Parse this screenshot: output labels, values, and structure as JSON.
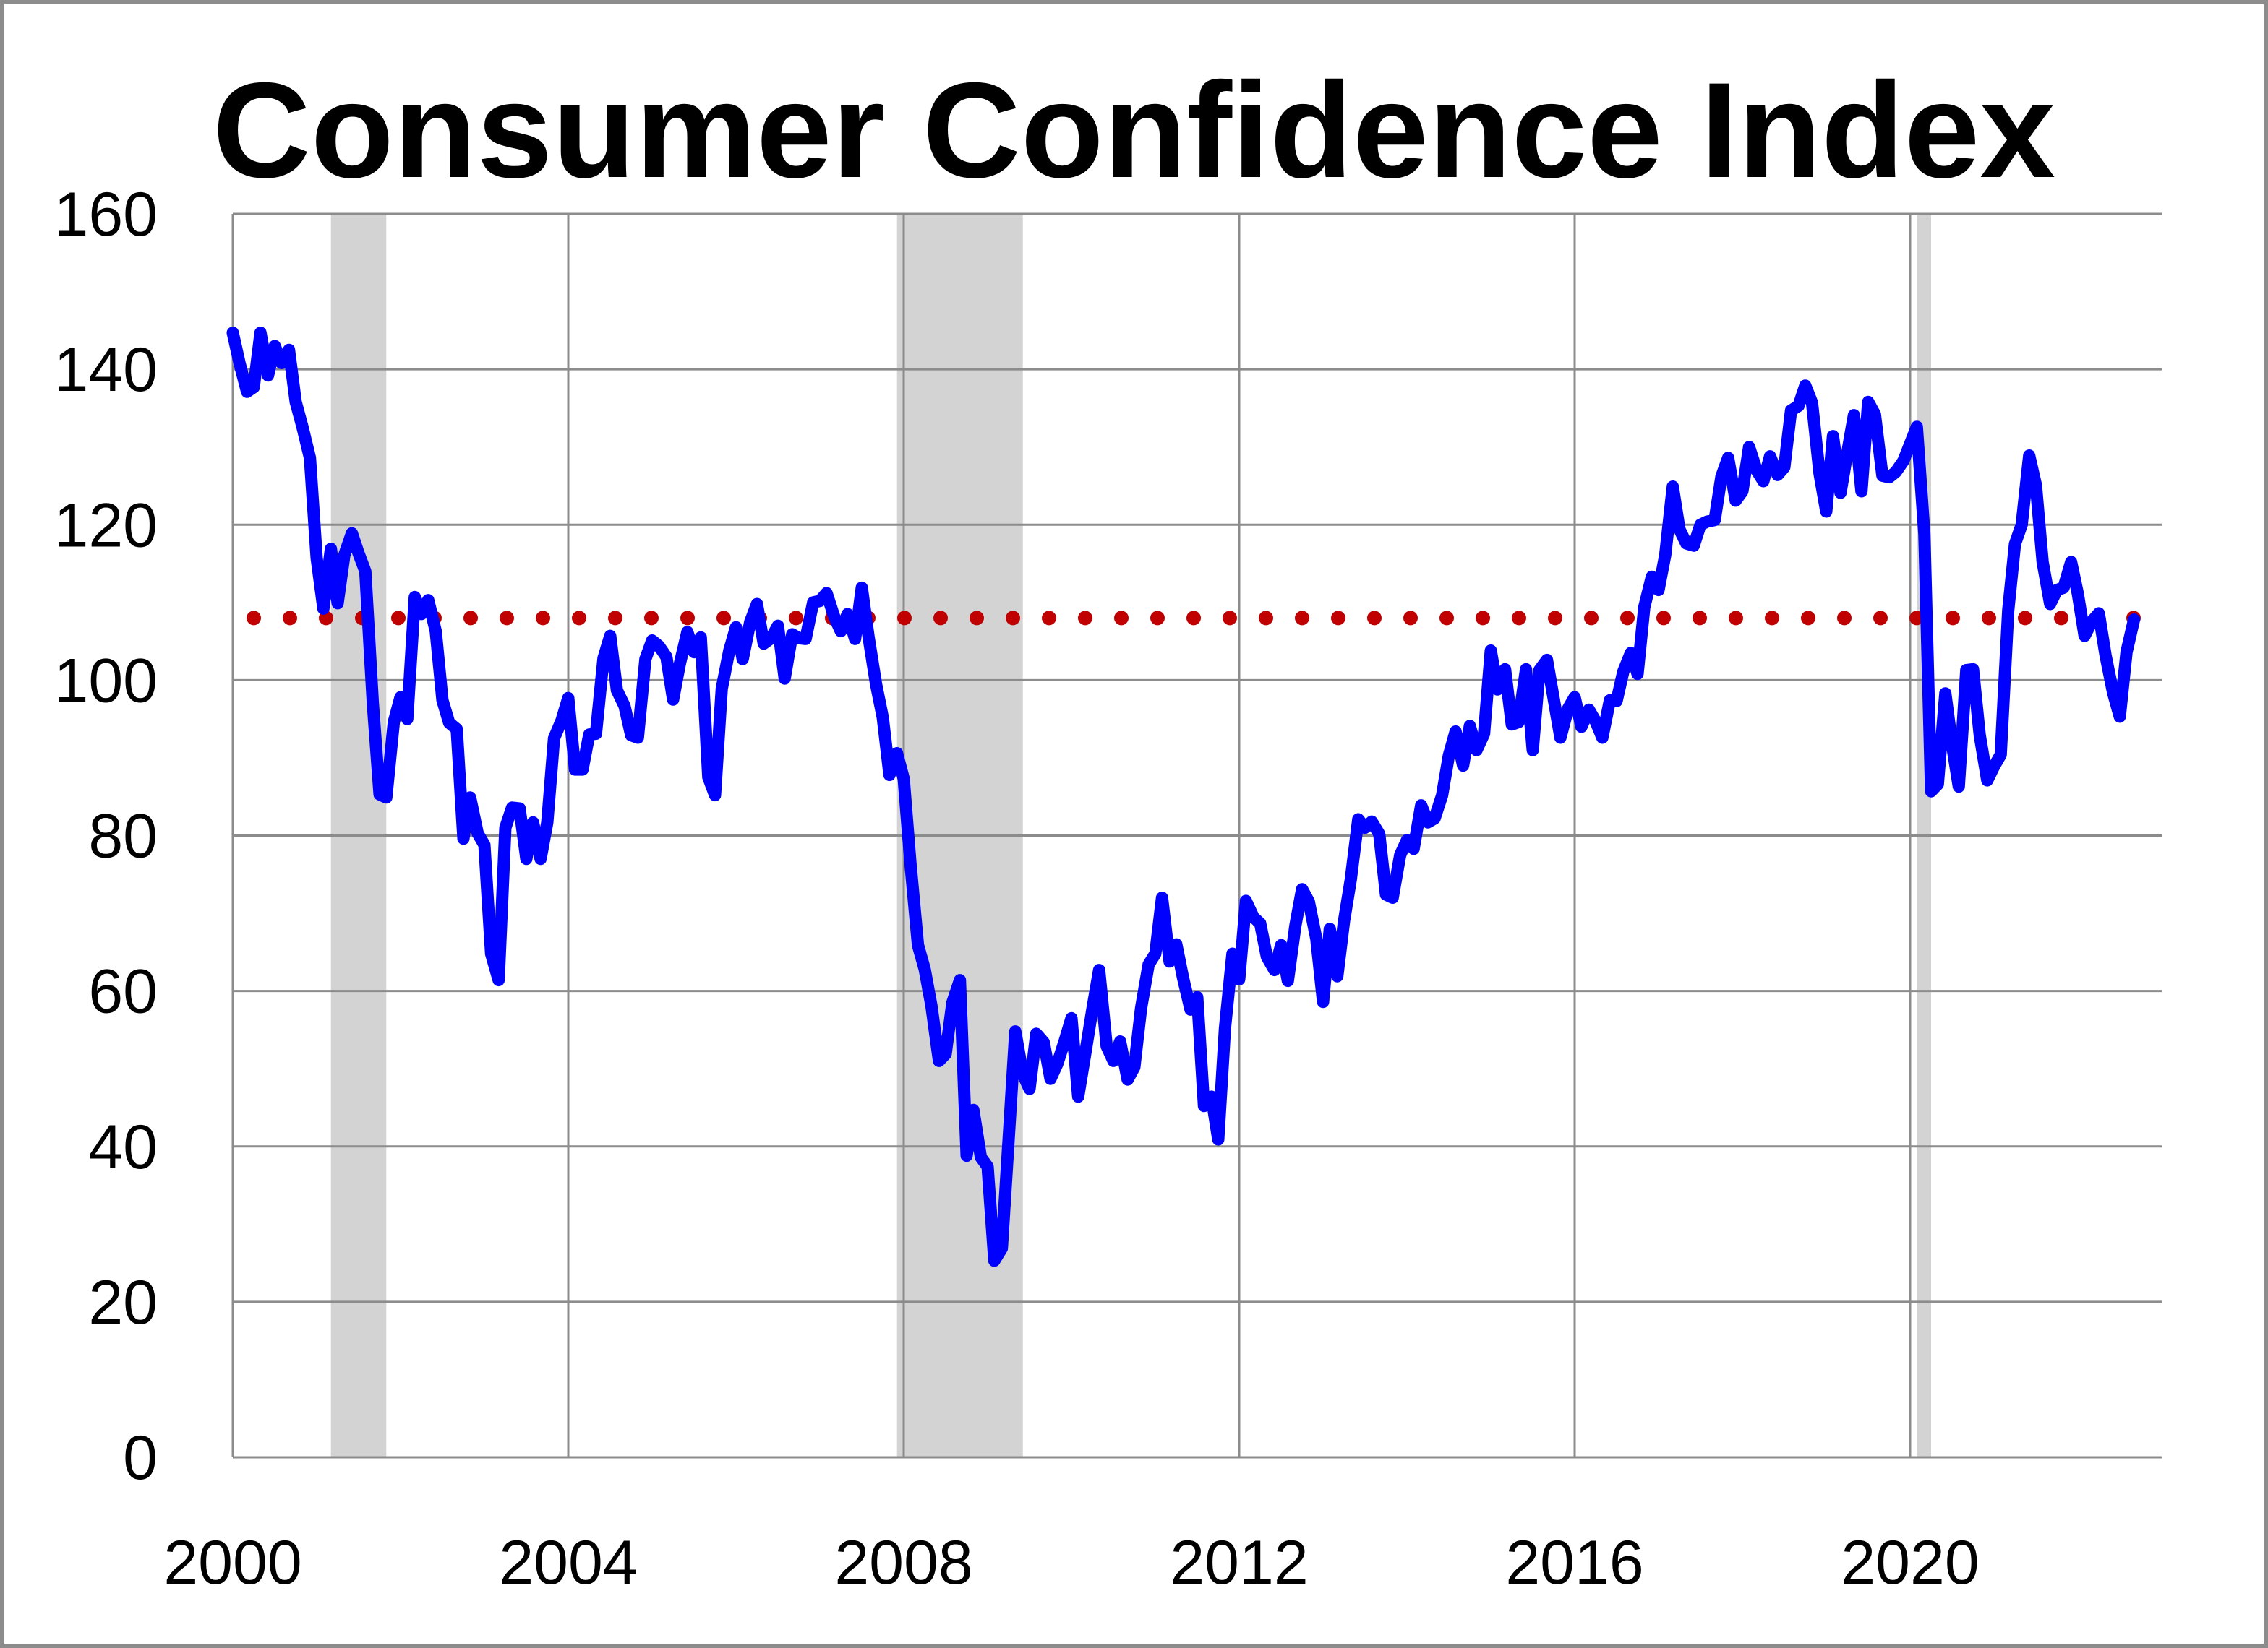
{
  "chart_data": {
    "type": "line",
    "title": "Consumer Confidence Index",
    "xlabel": "",
    "ylabel": "",
    "xlim": [
      2000.0,
      2023.0
    ],
    "ylim": [
      0,
      160
    ],
    "x_ticks": [
      2000,
      2004,
      2008,
      2012,
      2016,
      2020
    ],
    "x_tick_labels": [
      "2000",
      "2004",
      "2008",
      "2012",
      "2016",
      "2020"
    ],
    "y_ticks": [
      0,
      20,
      40,
      60,
      80,
      100,
      120,
      140,
      160
    ],
    "y_tick_labels": [
      "0",
      "20",
      "40",
      "60",
      "80",
      "100",
      "120",
      "140",
      "160"
    ],
    "grid": true,
    "legend": "none",
    "recessions": [
      {
        "start": 2001.17,
        "end": 2001.83
      },
      {
        "start": 2007.92,
        "end": 2009.42
      },
      {
        "start": 2020.08,
        "end": 2020.25
      }
    ],
    "reference_line": {
      "value": 108,
      "style": "dotted",
      "color": "#c00000"
    },
    "series": [
      {
        "color": "#0000ff",
        "points": [
          [
            2000.0,
            144.7
          ],
          [
            2000.08,
            140.8
          ],
          [
            2000.17,
            137.1
          ],
          [
            2000.25,
            137.7
          ],
          [
            2000.33,
            144.7
          ],
          [
            2000.42,
            139.2
          ],
          [
            2000.5,
            143.0
          ],
          [
            2000.58,
            140.8
          ],
          [
            2000.67,
            142.5
          ],
          [
            2000.75,
            135.8
          ],
          [
            2000.83,
            132.6
          ],
          [
            2000.92,
            128.6
          ],
          [
            2001.0,
            115.7
          ],
          [
            2001.08,
            109.2
          ],
          [
            2001.17,
            116.9
          ],
          [
            2001.25,
            109.9
          ],
          [
            2001.33,
            116.1
          ],
          [
            2001.42,
            118.9
          ],
          [
            2001.5,
            116.3
          ],
          [
            2001.58,
            114.0
          ],
          [
            2001.67,
            97.0
          ],
          [
            2001.75,
            85.3
          ],
          [
            2001.83,
            84.9
          ],
          [
            2001.92,
            94.6
          ],
          [
            2002.0,
            97.8
          ],
          [
            2002.08,
            95.0
          ],
          [
            2002.17,
            110.7
          ],
          [
            2002.25,
            108.5
          ],
          [
            2002.33,
            110.3
          ],
          [
            2002.42,
            106.3
          ],
          [
            2002.5,
            97.4
          ],
          [
            2002.58,
            94.5
          ],
          [
            2002.67,
            93.7
          ],
          [
            2002.75,
            79.6
          ],
          [
            2002.83,
            84.9
          ],
          [
            2002.92,
            80.3
          ],
          [
            2003.0,
            78.8
          ],
          [
            2003.08,
            64.8
          ],
          [
            2003.17,
            61.4
          ],
          [
            2003.25,
            81.0
          ],
          [
            2003.33,
            83.6
          ],
          [
            2003.42,
            83.5
          ],
          [
            2003.5,
            77.0
          ],
          [
            2003.58,
            81.7
          ],
          [
            2003.67,
            77.0
          ],
          [
            2003.75,
            81.7
          ],
          [
            2003.83,
            92.5
          ],
          [
            2003.92,
            94.8
          ],
          [
            2004.0,
            97.7
          ],
          [
            2004.08,
            88.5
          ],
          [
            2004.17,
            88.5
          ],
          [
            2004.25,
            93.0
          ],
          [
            2004.33,
            93.1
          ],
          [
            2004.42,
            102.8
          ],
          [
            2004.5,
            105.7
          ],
          [
            2004.58,
            98.7
          ],
          [
            2004.67,
            96.7
          ],
          [
            2004.75,
            92.9
          ],
          [
            2004.83,
            92.6
          ],
          [
            2004.92,
            102.7
          ],
          [
            2005.0,
            105.1
          ],
          [
            2005.08,
            104.4
          ],
          [
            2005.17,
            103.0
          ],
          [
            2005.25,
            97.5
          ],
          [
            2005.33,
            102.1
          ],
          [
            2005.42,
            106.2
          ],
          [
            2005.5,
            103.6
          ],
          [
            2005.58,
            105.5
          ],
          [
            2005.67,
            87.5
          ],
          [
            2005.75,
            85.2
          ],
          [
            2005.83,
            98.9
          ],
          [
            2005.92,
            103.8
          ],
          [
            2006.0,
            106.8
          ],
          [
            2006.08,
            102.7
          ],
          [
            2006.17,
            107.5
          ],
          [
            2006.25,
            109.8
          ],
          [
            2006.33,
            104.7
          ],
          [
            2006.42,
            105.4
          ],
          [
            2006.5,
            107.0
          ],
          [
            2006.58,
            100.2
          ],
          [
            2006.67,
            105.9
          ],
          [
            2006.75,
            105.4
          ],
          [
            2006.83,
            105.3
          ],
          [
            2006.92,
            110.0
          ],
          [
            2007.0,
            110.2
          ],
          [
            2007.08,
            111.2
          ],
          [
            2007.17,
            108.2
          ],
          [
            2007.25,
            106.3
          ],
          [
            2007.33,
            108.5
          ],
          [
            2007.42,
            105.3
          ],
          [
            2007.5,
            111.9
          ],
          [
            2007.58,
            105.6
          ],
          [
            2007.67,
            99.5
          ],
          [
            2007.75,
            95.2
          ],
          [
            2007.83,
            87.8
          ],
          [
            2007.92,
            90.6
          ],
          [
            2008.0,
            87.3
          ],
          [
            2008.08,
            76.4
          ],
          [
            2008.17,
            65.9
          ],
          [
            2008.25,
            62.8
          ],
          [
            2008.33,
            58.1
          ],
          [
            2008.42,
            51.0
          ],
          [
            2008.5,
            51.9
          ],
          [
            2008.58,
            58.5
          ],
          [
            2008.67,
            61.4
          ],
          [
            2008.75,
            38.8
          ],
          [
            2008.83,
            44.7
          ],
          [
            2008.92,
            38.6
          ],
          [
            2009.0,
            37.4
          ],
          [
            2009.08,
            25.3
          ],
          [
            2009.17,
            26.9
          ],
          [
            2009.25,
            40.8
          ],
          [
            2009.33,
            54.8
          ],
          [
            2009.42,
            49.3
          ],
          [
            2009.5,
            47.4
          ],
          [
            2009.58,
            54.5
          ],
          [
            2009.67,
            53.4
          ],
          [
            2009.75,
            48.7
          ],
          [
            2009.83,
            50.6
          ],
          [
            2009.92,
            53.6
          ],
          [
            2010.0,
            56.5
          ],
          [
            2010.08,
            46.4
          ],
          [
            2010.17,
            52.3
          ],
          [
            2010.25,
            57.7
          ],
          [
            2010.33,
            62.7
          ],
          [
            2010.42,
            52.9
          ],
          [
            2010.5,
            51.0
          ],
          [
            2010.58,
            53.5
          ],
          [
            2010.67,
            48.6
          ],
          [
            2010.75,
            50.2
          ],
          [
            2010.83,
            57.8
          ],
          [
            2010.92,
            63.4
          ],
          [
            2011.0,
            64.8
          ],
          [
            2011.08,
            72.0
          ],
          [
            2011.17,
            63.8
          ],
          [
            2011.25,
            66.0
          ],
          [
            2011.33,
            61.7
          ],
          [
            2011.42,
            57.6
          ],
          [
            2011.5,
            59.2
          ],
          [
            2011.58,
            45.2
          ],
          [
            2011.67,
            46.4
          ],
          [
            2011.75,
            40.9
          ],
          [
            2011.83,
            55.2
          ],
          [
            2011.92,
            64.8
          ],
          [
            2012.0,
            61.5
          ],
          [
            2012.08,
            71.6
          ],
          [
            2012.17,
            69.5
          ],
          [
            2012.25,
            68.7
          ],
          [
            2012.33,
            64.4
          ],
          [
            2012.42,
            62.7
          ],
          [
            2012.5,
            65.9
          ],
          [
            2012.58,
            61.3
          ],
          [
            2012.67,
            68.4
          ],
          [
            2012.75,
            73.1
          ],
          [
            2012.83,
            71.5
          ],
          [
            2012.92,
            66.7
          ],
          [
            2013.0,
            58.6
          ],
          [
            2013.08,
            68.0
          ],
          [
            2013.17,
            61.9
          ],
          [
            2013.25,
            69.0
          ],
          [
            2013.33,
            74.3
          ],
          [
            2013.42,
            82.1
          ],
          [
            2013.5,
            81.0
          ],
          [
            2013.58,
            81.8
          ],
          [
            2013.67,
            80.2
          ],
          [
            2013.75,
            72.4
          ],
          [
            2013.83,
            72.0
          ],
          [
            2013.92,
            77.5
          ],
          [
            2014.0,
            79.4
          ],
          [
            2014.08,
            78.3
          ],
          [
            2014.17,
            83.9
          ],
          [
            2014.25,
            81.7
          ],
          [
            2014.33,
            82.2
          ],
          [
            2014.42,
            85.2
          ],
          [
            2014.5,
            90.3
          ],
          [
            2014.58,
            93.4
          ],
          [
            2014.67,
            89.0
          ],
          [
            2014.75,
            94.1
          ],
          [
            2014.83,
            91.0
          ],
          [
            2014.92,
            93.1
          ],
          [
            2015.0,
            103.8
          ],
          [
            2015.08,
            98.8
          ],
          [
            2015.17,
            101.4
          ],
          [
            2015.25,
            94.3
          ],
          [
            2015.33,
            94.6
          ],
          [
            2015.42,
            101.4
          ],
          [
            2015.5,
            91.0
          ],
          [
            2015.58,
            101.3
          ],
          [
            2015.67,
            102.6
          ],
          [
            2015.75,
            97.6
          ],
          [
            2015.83,
            92.6
          ],
          [
            2015.92,
            96.3
          ],
          [
            2016.0,
            97.8
          ],
          [
            2016.08,
            94.0
          ],
          [
            2016.17,
            96.2
          ],
          [
            2016.25,
            94.7
          ],
          [
            2016.33,
            92.6
          ],
          [
            2016.42,
            97.4
          ],
          [
            2016.5,
            97.3
          ],
          [
            2016.58,
            101.1
          ],
          [
            2016.67,
            103.5
          ],
          [
            2016.75,
            100.8
          ],
          [
            2016.83,
            109.4
          ],
          [
            2016.92,
            113.3
          ],
          [
            2017.0,
            111.6
          ],
          [
            2017.08,
            116.1
          ],
          [
            2017.17,
            124.9
          ],
          [
            2017.25,
            119.4
          ],
          [
            2017.33,
            117.6
          ],
          [
            2017.42,
            117.3
          ],
          [
            2017.5,
            120.0
          ],
          [
            2017.58,
            120.4
          ],
          [
            2017.67,
            120.6
          ],
          [
            2017.75,
            126.2
          ],
          [
            2017.83,
            128.6
          ],
          [
            2017.92,
            123.1
          ],
          [
            2018.0,
            124.3
          ],
          [
            2018.08,
            130.0
          ],
          [
            2018.17,
            127.0
          ],
          [
            2018.25,
            125.6
          ],
          [
            2018.33,
            128.8
          ],
          [
            2018.42,
            126.4
          ],
          [
            2018.5,
            127.4
          ],
          [
            2018.58,
            134.7
          ],
          [
            2018.67,
            135.3
          ],
          [
            2018.75,
            137.9
          ],
          [
            2018.83,
            135.7
          ],
          [
            2018.92,
            126.6
          ],
          [
            2019.0,
            121.7
          ],
          [
            2019.08,
            131.4
          ],
          [
            2019.17,
            124.1
          ],
          [
            2019.25,
            129.2
          ],
          [
            2019.33,
            134.1
          ],
          [
            2019.42,
            124.3
          ],
          [
            2019.5,
            135.8
          ],
          [
            2019.58,
            134.2
          ],
          [
            2019.67,
            126.3
          ],
          [
            2019.75,
            126.1
          ],
          [
            2019.83,
            126.8
          ],
          [
            2019.92,
            128.2
          ],
          [
            2020.0,
            130.4
          ],
          [
            2020.08,
            132.6
          ],
          [
            2020.17,
            118.8
          ],
          [
            2020.25,
            85.7
          ],
          [
            2020.33,
            86.6
          ],
          [
            2020.42,
            98.3
          ],
          [
            2020.5,
            91.7
          ],
          [
            2020.58,
            86.3
          ],
          [
            2020.67,
            101.3
          ],
          [
            2020.75,
            101.4
          ],
          [
            2020.83,
            92.9
          ],
          [
            2020.92,
            87.1
          ],
          [
            2021.0,
            88.9
          ],
          [
            2021.08,
            90.4
          ],
          [
            2021.17,
            109.0
          ],
          [
            2021.25,
            117.5
          ],
          [
            2021.33,
            120.0
          ],
          [
            2021.42,
            128.9
          ],
          [
            2021.5,
            125.1
          ],
          [
            2021.58,
            115.2
          ],
          [
            2021.67,
            109.8
          ],
          [
            2021.75,
            111.6
          ],
          [
            2021.83,
            111.9
          ],
          [
            2021.92,
            115.2
          ],
          [
            2022.0,
            111.1
          ],
          [
            2022.08,
            105.7
          ],
          [
            2022.17,
            107.6
          ],
          [
            2022.25,
            108.6
          ],
          [
            2022.33,
            103.2
          ],
          [
            2022.42,
            98.4
          ],
          [
            2022.5,
            95.3
          ],
          [
            2022.58,
            103.6
          ],
          [
            2022.67,
            107.8
          ]
        ]
      }
    ]
  }
}
